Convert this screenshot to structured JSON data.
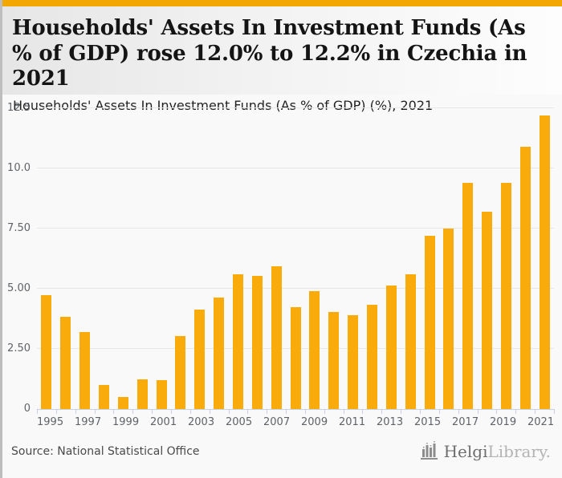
{
  "header": {
    "title": "Households' Assets In Investment Funds (As % of GDP) rose 12.0% to 12.2% in Czechia in 2021",
    "subtitle": "Households' Assets In Investment Funds (As % of GDP) (%), 2021"
  },
  "chart_data": {
    "type": "bar",
    "title": "Households' Assets In Investment Funds (As % of GDP) (%), 2021",
    "xlabel": "",
    "ylabel": "",
    "categories": [
      "1995",
      "1996",
      "1997",
      "1998",
      "1999",
      "2000",
      "2001",
      "2002",
      "2003",
      "2004",
      "2005",
      "2006",
      "2007",
      "2008",
      "2009",
      "2010",
      "2011",
      "2012",
      "2013",
      "2014",
      "2015",
      "2016",
      "2017",
      "2018",
      "2019",
      "2020",
      "2021"
    ],
    "values": [
      4.75,
      3.85,
      3.2,
      1.0,
      0.5,
      1.25,
      1.2,
      3.05,
      4.15,
      4.65,
      5.6,
      5.55,
      5.95,
      4.25,
      4.9,
      4.05,
      3.9,
      4.35,
      5.15,
      5.6,
      7.2,
      7.5,
      9.4,
      8.2,
      9.4,
      10.9,
      12.2
    ],
    "ylim": [
      0,
      12.5
    ],
    "yticks": [
      {
        "value": 0,
        "label": "0"
      },
      {
        "value": 2.5,
        "label": "2.50"
      },
      {
        "value": 5,
        "label": "5.00"
      },
      {
        "value": 7.5,
        "label": "7.50"
      },
      {
        "value": 10,
        "label": "10.0"
      },
      {
        "value": 12.5,
        "label": "12.5"
      }
    ],
    "xtick_labels": [
      "1995",
      "1997",
      "1999",
      "2001",
      "2003",
      "2005",
      "2007",
      "2009",
      "2011",
      "2013",
      "2015",
      "2017",
      "2019",
      "2021"
    ],
    "grid": true,
    "legend": "none",
    "bar_color": "#FAAB0C"
  },
  "footer": {
    "source": "Source: National Statistical Office",
    "logo": {
      "brand_primary": "Helgi",
      "brand_secondary": "Library.",
      "icon": "bar-chart-logo-icon"
    }
  },
  "colors": {
    "accent_bar": "#F2A702",
    "bar": "#FAAB0C",
    "axis": "#c7d0e4",
    "gridline": "#e7e7e7",
    "page_bg": "#f9f9f9"
  }
}
